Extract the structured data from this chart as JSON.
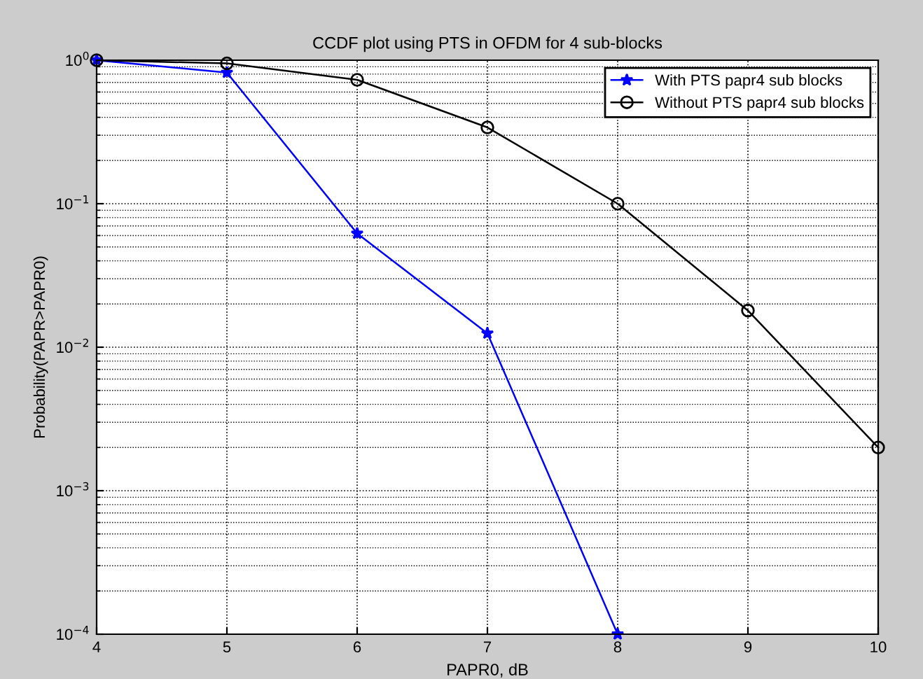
{
  "chart_data": {
    "type": "line",
    "title": "CCDF plot using PTS in OFDM for 4 sub-blocks",
    "xlabel": "PAPR0, dB",
    "ylabel": "Probability(PAPR>PAPR0)",
    "x": [
      4,
      5,
      6,
      7,
      8,
      9,
      10
    ],
    "series": [
      {
        "name": "With PTS papr4 sub blocks",
        "color": "#0000ff",
        "marker": "star",
        "values": [
          1.0,
          0.82,
          0.062,
          0.0125,
          0.0001,
          null,
          null
        ]
      },
      {
        "name": "Without PTS papr4 sub blocks",
        "color": "#000000",
        "marker": "circle",
        "values": [
          1.0,
          0.95,
          0.73,
          0.34,
          0.1,
          0.018,
          0.002
        ]
      }
    ],
    "log": "y",
    "xlim": [
      4,
      10
    ],
    "xticks": [
      4,
      5,
      6,
      7,
      8,
      9,
      10
    ],
    "ylim": [
      0.0001,
      1
    ],
    "yticks": [
      {
        "value": 0.0001,
        "label": "10$^{−4}$"
      },
      {
        "value": 0.001,
        "label": "10$^{−3}$"
      },
      {
        "value": 0.01,
        "label": "10$^{−2}$"
      },
      {
        "value": 0.1,
        "label": "10$^{−1}$"
      },
      {
        "value": 1,
        "label": "10$^{0}$"
      }
    ],
    "grid": true,
    "legend": "top right",
    "line_style": "solid"
  }
}
